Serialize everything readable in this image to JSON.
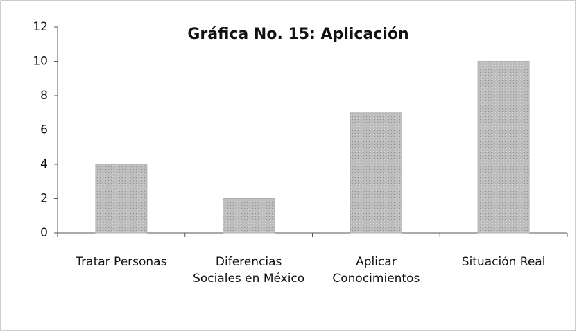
{
  "chart_data": {
    "type": "bar",
    "title": "Gráfica No. 15: Aplicación",
    "categories": [
      "Tratar Personas",
      "Diferencias Sociales en México",
      "Aplicar Conocimientos",
      "Situación Real"
    ],
    "values": [
      4,
      2,
      7,
      10
    ],
    "color": "#b3b3b3",
    "ylim": [
      0,
      12
    ],
    "yticks": [
      0,
      2,
      4,
      6,
      8,
      10,
      12
    ],
    "grid": false
  }
}
